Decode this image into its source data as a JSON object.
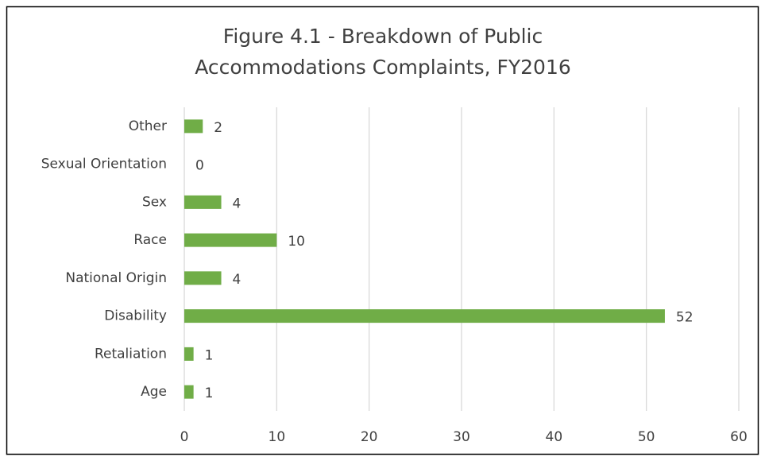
{
  "chart_data": {
    "type": "bar",
    "orientation": "horizontal",
    "title": [
      "Figure 4.1 - Breakdown of Public",
      "Accommodations Complaints, FY2016"
    ],
    "categories": [
      "Other",
      "Sexual Orientation",
      "Sex",
      "Race",
      "National Origin",
      "Disability",
      "Retaliation",
      "Age"
    ],
    "values": [
      2,
      0,
      4,
      10,
      4,
      52,
      1,
      1
    ],
    "color": "#70ad47",
    "xlim": [
      0,
      60
    ],
    "xticks": [
      0,
      10,
      20,
      30,
      40,
      50,
      60
    ],
    "grid": true
  }
}
